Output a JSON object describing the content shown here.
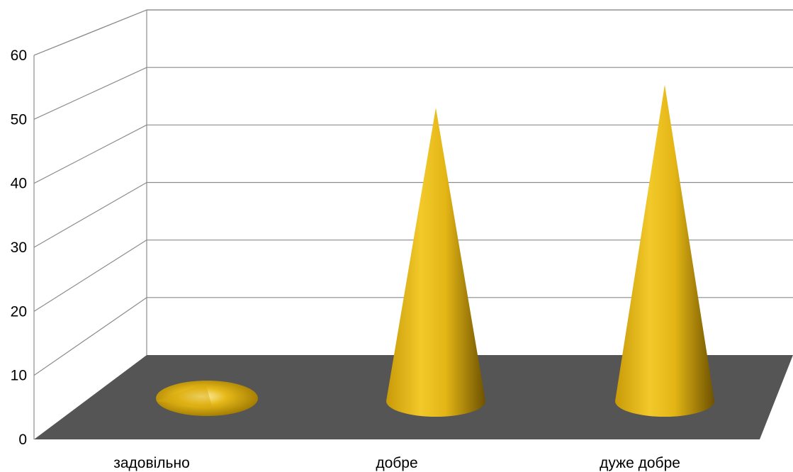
{
  "chart_data": {
    "type": "bar",
    "style": "3d-cone",
    "categories": [
      "задовільно",
      "добре",
      "дуже добре"
    ],
    "values": [
      1,
      51,
      55
    ],
    "ylim": [
      0,
      60
    ],
    "y_ticks": [
      "0",
      "10",
      "20",
      "30",
      "40",
      "50",
      "60"
    ],
    "grid": "horizontal",
    "legend": "none"
  },
  "colors": {
    "cone": "#e6b919",
    "cone_dark": "#8a6a00",
    "floor": "#555555",
    "grid": "#8c8c8c"
  }
}
